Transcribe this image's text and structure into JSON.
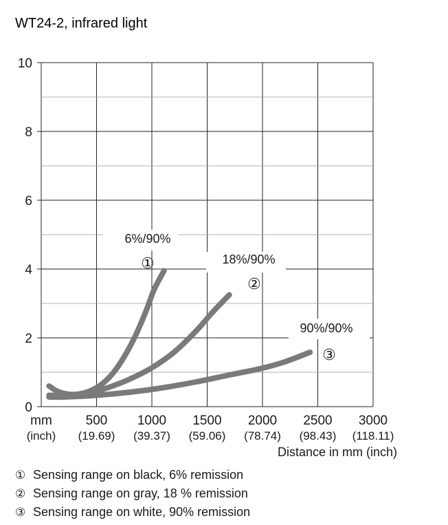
{
  "chart_data": {
    "type": "line",
    "title": "WT24-2, infrared light",
    "xlabel": "Distance in mm (inch)",
    "ylabel": "",
    "xlim": [
      0,
      3000
    ],
    "ylim": [
      0,
      10
    ],
    "grid": true,
    "x_ticks": [
      {
        "value": 0,
        "label": "mm",
        "sub": "(inch)"
      },
      {
        "value": 500,
        "label": "500",
        "sub": "(19.69)"
      },
      {
        "value": 1000,
        "label": "1000",
        "sub": "(39.37)"
      },
      {
        "value": 1500,
        "label": "1500",
        "sub": "(59.06)"
      },
      {
        "value": 2000,
        "label": "2000",
        "sub": "(78.74)"
      },
      {
        "value": 2500,
        "label": "2500",
        "sub": "(98.43)"
      },
      {
        "value": 3000,
        "label": "3000",
        "sub": "(118.11)"
      }
    ],
    "y_ticks": [
      {
        "value": 0,
        "label": "0"
      },
      {
        "value": 2,
        "label": "2"
      },
      {
        "value": 4,
        "label": "4"
      },
      {
        "value": 6,
        "label": "6"
      },
      {
        "value": 8,
        "label": "8"
      },
      {
        "value": 10,
        "label": "10"
      }
    ],
    "series": [
      {
        "name": "6%/90%",
        "marker": "①",
        "x": [
          70,
          150,
          250,
          350,
          450,
          550,
          650,
          750,
          850,
          950,
          1020,
          1110
        ],
        "y": [
          0.6,
          0.44,
          0.36,
          0.37,
          0.47,
          0.66,
          0.98,
          1.45,
          2.05,
          2.8,
          3.4,
          3.95
        ]
      },
      {
        "name": "18%/90%",
        "marker": "②",
        "x": [
          70,
          200,
          400,
          600,
          800,
          1000,
          1200,
          1400,
          1550,
          1700
        ],
        "y": [
          0.33,
          0.32,
          0.38,
          0.55,
          0.8,
          1.13,
          1.58,
          2.2,
          2.75,
          3.25
        ]
      },
      {
        "name": "90%/90%",
        "marker": "③",
        "x": [
          70,
          200,
          500,
          800,
          1100,
          1400,
          1700,
          2000,
          2200,
          2430
        ],
        "y": [
          0.28,
          0.28,
          0.33,
          0.42,
          0.55,
          0.72,
          0.92,
          1.12,
          1.3,
          1.58
        ]
      }
    ],
    "legend": [
      {
        "marker": "①",
        "text": "Sensing range on black, 6% remission"
      },
      {
        "marker": "②",
        "text": "Sensing range on gray, 18 % remission"
      },
      {
        "marker": "③",
        "text": "Sensing range on white, 90% remission"
      }
    ],
    "colors": {
      "curve": "#7a7a7a",
      "grid": "#222222",
      "text": "#1a1a1a"
    }
  }
}
